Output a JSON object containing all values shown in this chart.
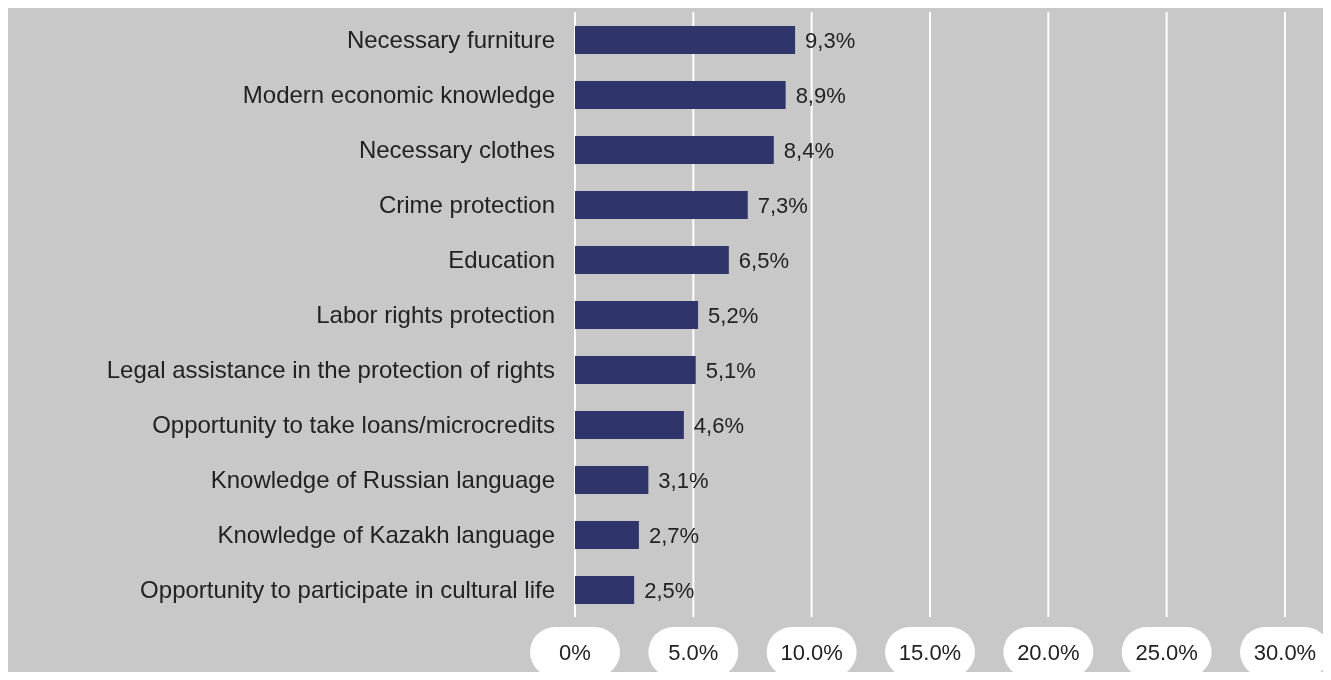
{
  "chart_data": {
    "type": "bar",
    "orientation": "horizontal",
    "categories": [
      "Necessary furniture",
      "Modern economic knowledge",
      "Necessary clothes",
      "Crime protection",
      "Education",
      "Labor rights protection",
      "Legal assistance in the protection of rights",
      "Opportunity to take loans/microcredits",
      "Knowledge of Russian language",
      "Knowledge of Kazakh language",
      "Opportunity to participate in cultural life"
    ],
    "values": [
      9.3,
      8.9,
      8.4,
      7.3,
      6.5,
      5.2,
      5.1,
      4.6,
      3.1,
      2.7,
      2.5
    ],
    "value_labels": [
      "9,3%",
      "8,9%",
      "8,4%",
      "7,3%",
      "6,5%",
      "5,2%",
      "5,1%",
      "4,6%",
      "3,1%",
      "2,7%",
      "2,5%"
    ],
    "color": "#2f356b",
    "xlim": [
      0,
      30
    ],
    "xticks": [
      {
        "value": 0,
        "label": "0%"
      },
      {
        "value": 5,
        "label": "5.0%"
      },
      {
        "value": 10,
        "label": "10.0%"
      },
      {
        "value": 15,
        "label": "15.0%"
      },
      {
        "value": 20,
        "label": "20.0%"
      },
      {
        "value": 25,
        "label": "25.0%"
      },
      {
        "value": 30,
        "label": "30.0%"
      }
    ],
    "grid": "x"
  }
}
